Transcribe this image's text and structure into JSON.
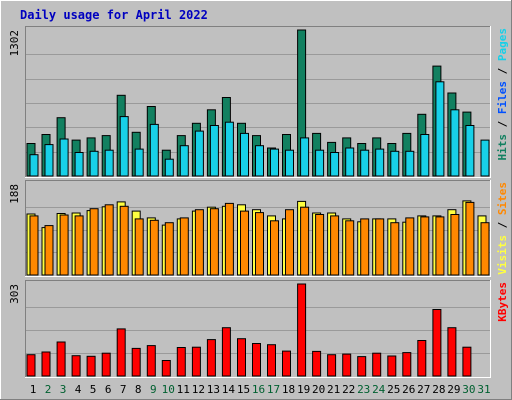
{
  "title": "Daily usage for April 2022",
  "colors": {
    "background": "#c0c0c0",
    "title": "#0000c0",
    "panel": "#c0c0c0",
    "grid": "#9a9a9a",
    "hits": "#128060",
    "files": "#18d0e8",
    "visits": "#ffff40",
    "sites": "#ff8800",
    "kbytes": "#ff0000",
    "weekend_day_label": "#006030",
    "weekday_label": "#000000"
  },
  "days": [
    "1",
    "2",
    "3",
    "4",
    "5",
    "6",
    "7",
    "8",
    "9",
    "10",
    "11",
    "12",
    "13",
    "14",
    "15",
    "16",
    "17",
    "18",
    "19",
    "20",
    "21",
    "22",
    "23",
    "24",
    "25",
    "26",
    "27",
    "28",
    "29",
    "30",
    "31"
  ],
  "weekend_days": [
    "2",
    "3",
    "9",
    "10",
    "16",
    "17",
    "23",
    "24",
    "30",
    "31"
  ],
  "chart_data": [
    {
      "type": "bar",
      "panel": "top",
      "y_max_label": "1302",
      "ylim": [
        0,
        1302
      ],
      "grid": true,
      "legend_items": [
        "Pages",
        "Files",
        "Hits"
      ],
      "legend_separator": "/",
      "categories": [
        "1",
        "2",
        "3",
        "4",
        "5",
        "6",
        "7",
        "8",
        "9",
        "10",
        "11",
        "12",
        "13",
        "14",
        "15",
        "16",
        "17",
        "18",
        "19",
        "20",
        "21",
        "22",
        "23",
        "24",
        "25",
        "26",
        "27",
        "28",
        "29",
        "30",
        "31"
      ],
      "series": [
        {
          "name": "Hits",
          "color_key": "hits",
          "values": [
            290,
            370,
            520,
            320,
            340,
            360,
            720,
            390,
            620,
            230,
            360,
            470,
            590,
            700,
            470,
            360,
            250,
            370,
            1302,
            380,
            300,
            340,
            290,
            340,
            290,
            380,
            550,
            980,
            740,
            570,
            null
          ]
        },
        {
          "name": "Files",
          "color_key": "files",
          "values": [
            190,
            280,
            330,
            210,
            220,
            230,
            530,
            240,
            460,
            150,
            270,
            400,
            450,
            480,
            380,
            270,
            240,
            230,
            340,
            230,
            210,
            250,
            230,
            240,
            220,
            220,
            370,
            840,
            590,
            450,
            320
          ]
        }
      ]
    },
    {
      "type": "bar",
      "panel": "middle",
      "y_max_label": "188",
      "ylim": [
        0,
        188
      ],
      "grid": true,
      "legend_items": [
        "Sites",
        "Visits"
      ],
      "legend_separator": "/",
      "categories": [
        "1",
        "2",
        "3",
        "4",
        "5",
        "6",
        "7",
        "8",
        "9",
        "10",
        "11",
        "12",
        "13",
        "14",
        "15",
        "16",
        "17",
        "18",
        "19",
        "20",
        "21",
        "22",
        "23",
        "24",
        "25",
        "26",
        "27",
        "28",
        "29",
        "30",
        "31"
      ],
      "series": [
        {
          "name": "Visits",
          "color_key": "visits",
          "values": [
            126,
            98,
            127,
            128,
            133,
            141,
            151,
            132,
            118,
            103,
            116,
            132,
            140,
            142,
            145,
            135,
            122,
            116,
            152,
            128,
            128,
            116,
            110,
            116,
            116,
            109,
            122,
            122,
            135,
            153,
            122
          ]
        },
        {
          "name": "Sites",
          "color_key": "sites",
          "values": [
            122,
            102,
            124,
            122,
            137,
            145,
            142,
            116,
            113,
            108,
            118,
            135,
            137,
            148,
            132,
            129,
            112,
            135,
            140,
            125,
            122,
            112,
            116,
            116,
            108,
            118,
            120,
            120,
            125,
            150,
            108
          ]
        }
      ]
    },
    {
      "type": "bar",
      "panel": "bottom",
      "y_max_label": "303",
      "ylim": [
        0,
        303
      ],
      "grid": true,
      "legend_items": [
        "KBytes"
      ],
      "legend_separator": "",
      "categories": [
        "1",
        "2",
        "3",
        "4",
        "5",
        "6",
        "7",
        "8",
        "9",
        "10",
        "11",
        "12",
        "13",
        "14",
        "15",
        "16",
        "17",
        "18",
        "19",
        "20",
        "21",
        "22",
        "23",
        "24",
        "25",
        "26",
        "27",
        "28",
        "29",
        "30",
        "31"
      ],
      "series": [
        {
          "name": "KBytes",
          "color_key": "kbytes",
          "values": [
            70,
            79,
            112,
            67,
            65,
            75,
            155,
            91,
            100,
            51,
            94,
            95,
            120,
            159,
            123,
            107,
            103,
            82,
            303,
            81,
            70,
            72,
            64,
            75,
            66,
            77,
            117,
            219,
            159,
            95,
            null
          ]
        }
      ]
    }
  ]
}
